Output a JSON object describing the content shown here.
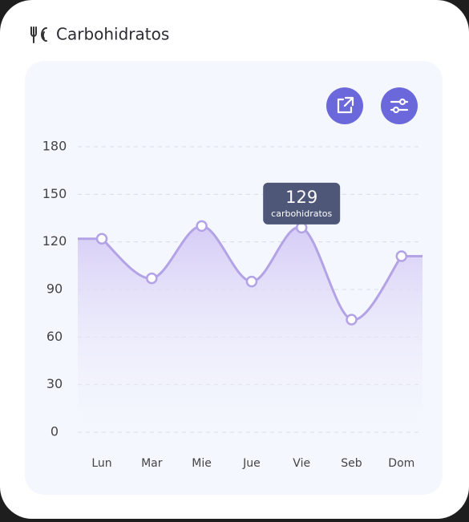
{
  "chart_data": {
    "type": "area",
    "title": "Carbohidratos",
    "categories": [
      "Lun",
      "Mar",
      "Mie",
      "Jue",
      "Vie",
      "Seb",
      "Dom"
    ],
    "values": [
      122,
      97,
      130,
      95,
      129,
      71,
      111
    ],
    "color": "#b3a3e6",
    "ylim": [
      0,
      180
    ],
    "yticks": [
      0,
      30,
      60,
      90,
      120,
      150,
      180
    ],
    "grid": true,
    "tooltip": {
      "index": 4,
      "label": "carbohidratos"
    }
  }
}
